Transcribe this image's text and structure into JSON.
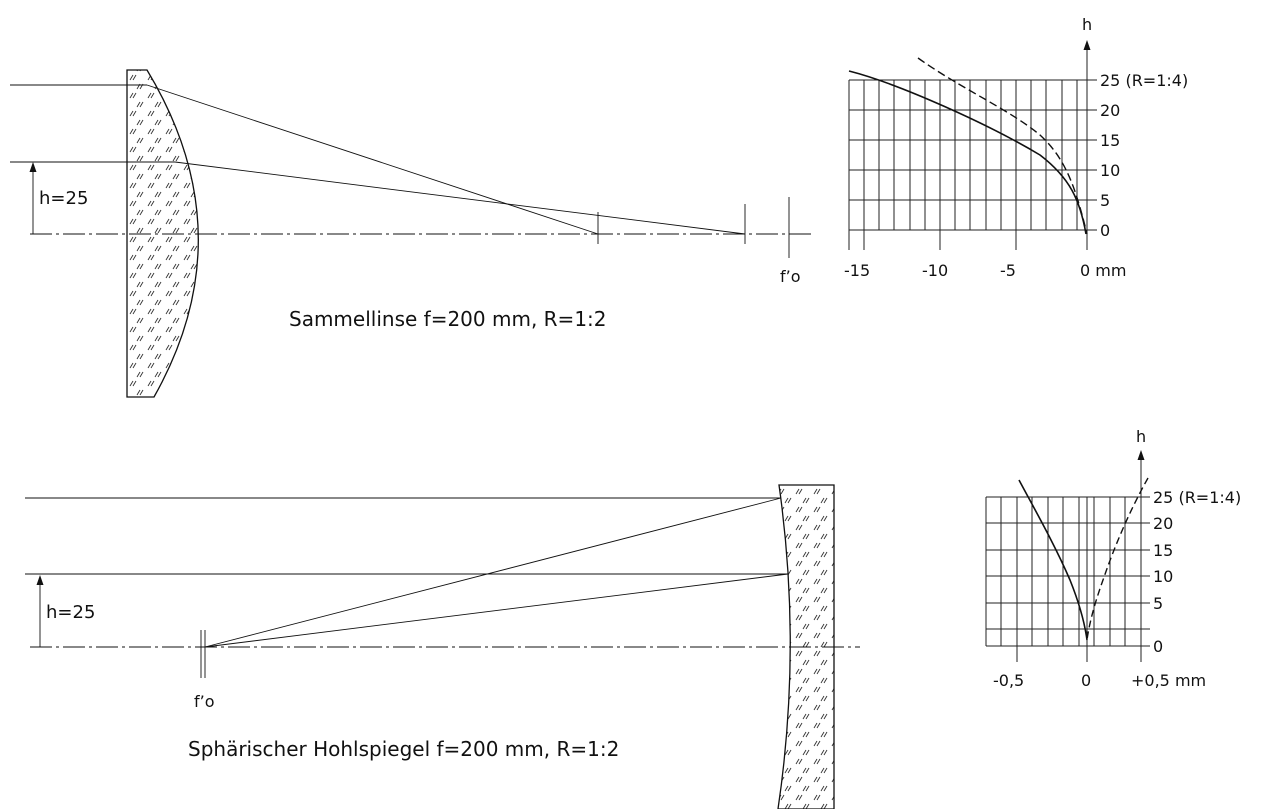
{
  "top": {
    "height_label": "h=25",
    "caption": "Sammellinse f=200 mm, R=1:2",
    "focus_label": "f’o",
    "chart_axis_h": "h",
    "chart_y_ticks": [
      "25 (R=1:4)",
      "20",
      "15",
      "10",
      "5",
      "0"
    ],
    "chart_x_ticks": [
      "-15",
      "-10",
      "-5",
      "0 mm"
    ]
  },
  "bottom": {
    "height_label": "h=25",
    "caption": "Sphärischer Hohlspiegel f=200 mm, R=1:2",
    "focus_label": "f’o",
    "chart_axis_h": "h",
    "chart_y_ticks": [
      "25 (R=1:4)",
      "20",
      "15",
      "10",
      "5",
      "0"
    ],
    "chart_x_ticks": [
      "-0,5",
      "0",
      "+0,5 mm"
    ]
  },
  "chart_data": [
    {
      "type": "line",
      "title": "",
      "xlabel": "mm",
      "ylabel": "h",
      "xlim": [
        -15.5,
        0
      ],
      "ylim": [
        0,
        25
      ],
      "grid": true,
      "series": [
        {
          "style": "solid",
          "x": [
            -15.5,
            -14.5,
            -9,
            -5,
            -2,
            -0.5,
            0
          ],
          "y": [
            26.5,
            25,
            20,
            15,
            10,
            5,
            0
          ]
        },
        {
          "style": "dashed",
          "x": [
            -10.5,
            -6,
            -3,
            -1.5,
            -0.4,
            0
          ],
          "y": [
            26.5,
            20,
            15,
            10,
            5,
            0
          ]
        }
      ]
    },
    {
      "type": "line",
      "title": "",
      "xlabel": "mm",
      "ylabel": "h",
      "xlim": [
        -0.75,
        0.75
      ],
      "ylim": [
        0,
        25
      ],
      "grid": true,
      "series": [
        {
          "style": "solid",
          "x": [
            -0.55,
            -0.45,
            -0.3,
            -0.15,
            -0.05,
            0
          ],
          "y": [
            27,
            25,
            15,
            8,
            3,
            0
          ]
        },
        {
          "style": "dashed",
          "x": [
            0.55,
            0.45,
            0.3,
            0.15,
            0.05,
            0
          ],
          "y": [
            27,
            25,
            15,
            8,
            3,
            0
          ]
        }
      ]
    }
  ]
}
